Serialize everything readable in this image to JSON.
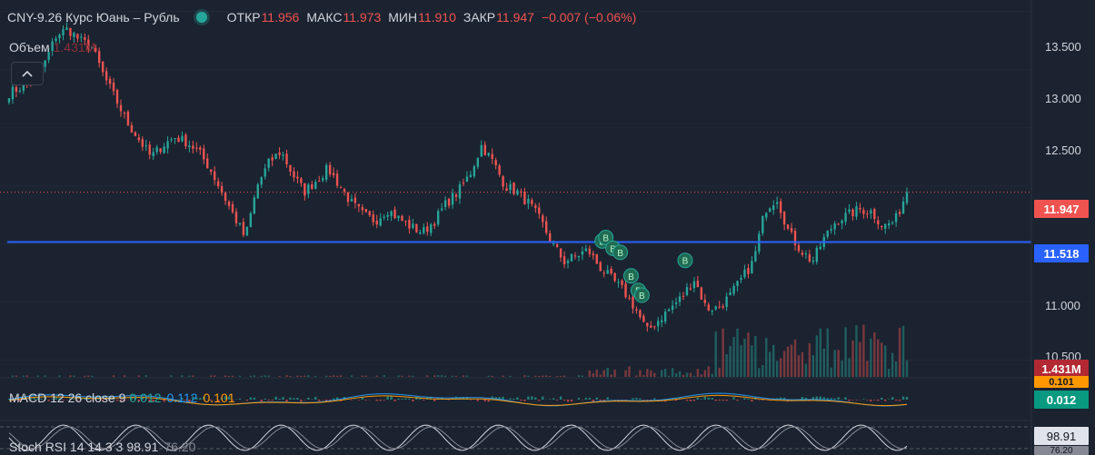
{
  "legend": {
    "title": "CNY-9.26 Курс Юань – Рубль",
    "open_label": "ОТКР",
    "open": "11.956",
    "high_label": "МАКС",
    "high": "11.973",
    "low_label": "МИН",
    "low": "11.910",
    "close_label": "ЗАКР",
    "close": "11.947",
    "change": "−0.007 (−0.06%)"
  },
  "volume": {
    "label": "Объем",
    "value": "1.431M"
  },
  "collapse_icon": "chevron-up-icon",
  "macd": {
    "label": "MACD 12 26 close 9",
    "hist": "0.012",
    "macd": "0.112",
    "signal": "0.101"
  },
  "stoch": {
    "label": "Stoch RSI 14 14 3 3",
    "k": "98.91",
    "d": "76.20"
  },
  "badges": {
    "last_price": "11.947",
    "level": "11.518",
    "volume": "1.431M",
    "macd_signal": "0.101",
    "macd_hist": "0.012",
    "stoch_k": "98.91",
    "stoch_d": "76.20"
  },
  "colors": {
    "up": "#26a69a",
    "down": "#ef5350",
    "level": "#2962ff",
    "macd": "#2196f3",
    "signal": "#ff9800",
    "background": "#1b2330"
  },
  "chart_data": {
    "type": "candlestick",
    "y_ticks": [
      "13.500",
      "13.000",
      "12.500",
      "11.000",
      "10.500"
    ],
    "ylim": [
      10.35,
      13.6
    ],
    "level_line": 11.518,
    "last_price": 11.947,
    "close_path": [
      12.8,
      12.85,
      12.9,
      13.05,
      13.3,
      13.35,
      13.25,
      13.2,
      12.95,
      12.75,
      12.55,
      12.4,
      12.25,
      12.35,
      12.42,
      12.38,
      12.3,
      12.15,
      11.95,
      11.75,
      11.55,
      12.0,
      12.2,
      12.3,
      12.1,
      11.95,
      12.05,
      12.15,
      12.0,
      11.85,
      11.75,
      11.7,
      11.8,
      11.72,
      11.65,
      11.6,
      11.7,
      11.85,
      11.95,
      12.1,
      12.35,
      12.2,
      12.0,
      11.95,
      11.85,
      11.7,
      11.5,
      11.35,
      11.4,
      11.45,
      11.3,
      11.2,
      11.1,
      10.95,
      10.75,
      10.85,
      10.95,
      11.05,
      11.2,
      10.95,
      10.95,
      11.05,
      11.2,
      11.35,
      11.8,
      11.9,
      11.6,
      11.45,
      11.35,
      11.55,
      11.7,
      11.75,
      11.8,
      11.78,
      11.65,
      11.7,
      11.95
    ],
    "signal_markers": 8
  }
}
